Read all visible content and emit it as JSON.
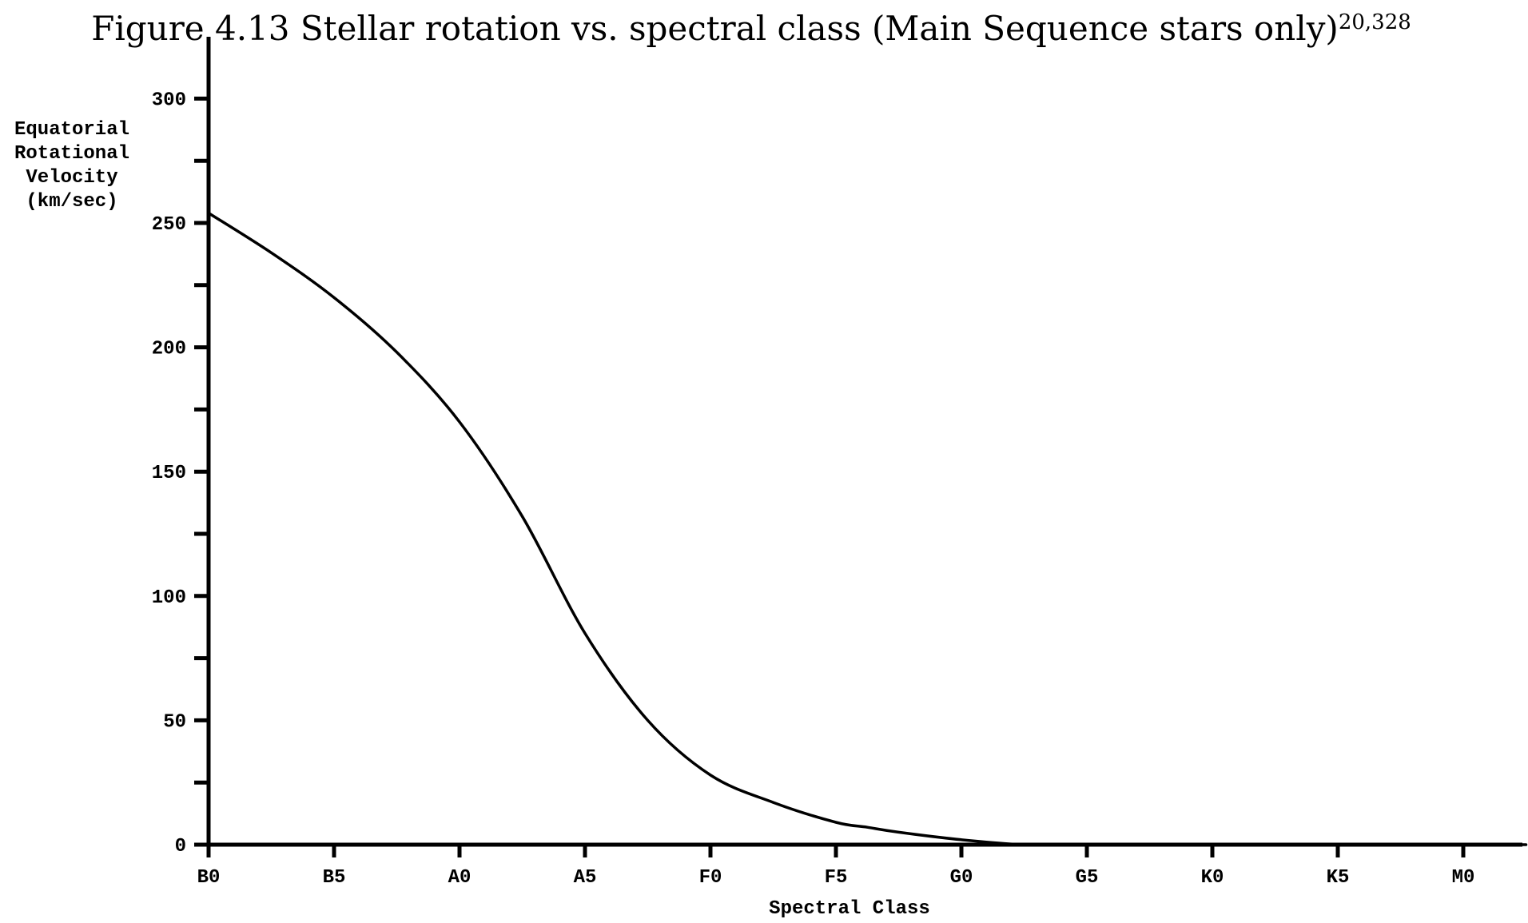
{
  "chart_data": {
    "type": "line",
    "title": "Figure 4.13 Stellar rotation vs. spectral class (Main Sequence stars only)",
    "title_superscript": "20,328",
    "xlabel": "Spectral Class",
    "ylabel_lines": [
      "Equatorial",
      "Rotational",
      "Velocity",
      "(km/sec)"
    ],
    "categories": [
      "B0",
      "B5",
      "A0",
      "A5",
      "F0",
      "F5",
      "G0",
      "G5",
      "K0",
      "K5",
      "M0"
    ],
    "ylim": [
      0,
      320
    ],
    "yticks": [
      0,
      50,
      100,
      150,
      200,
      250,
      300
    ],
    "y_minor_step": 25,
    "grid": false,
    "legend": "none",
    "series": [
      {
        "x": [
          0,
          0.5,
          1,
          1.5,
          2,
          2.5,
          3,
          3.5,
          4,
          4.5,
          5,
          5.25,
          5.5,
          6,
          6.5,
          7,
          7.5,
          8,
          8.5,
          9,
          9.5,
          10,
          10.5
        ],
        "values": [
          254,
          238,
          220,
          198,
          170,
          132,
          85,
          50,
          28,
          17,
          9,
          7,
          5,
          2,
          0,
          0,
          0,
          0,
          0,
          0,
          0,
          0,
          0
        ]
      }
    ],
    "colors": {
      "line": "#000000",
      "axis": "#000000",
      "background": "#ffffff"
    }
  }
}
